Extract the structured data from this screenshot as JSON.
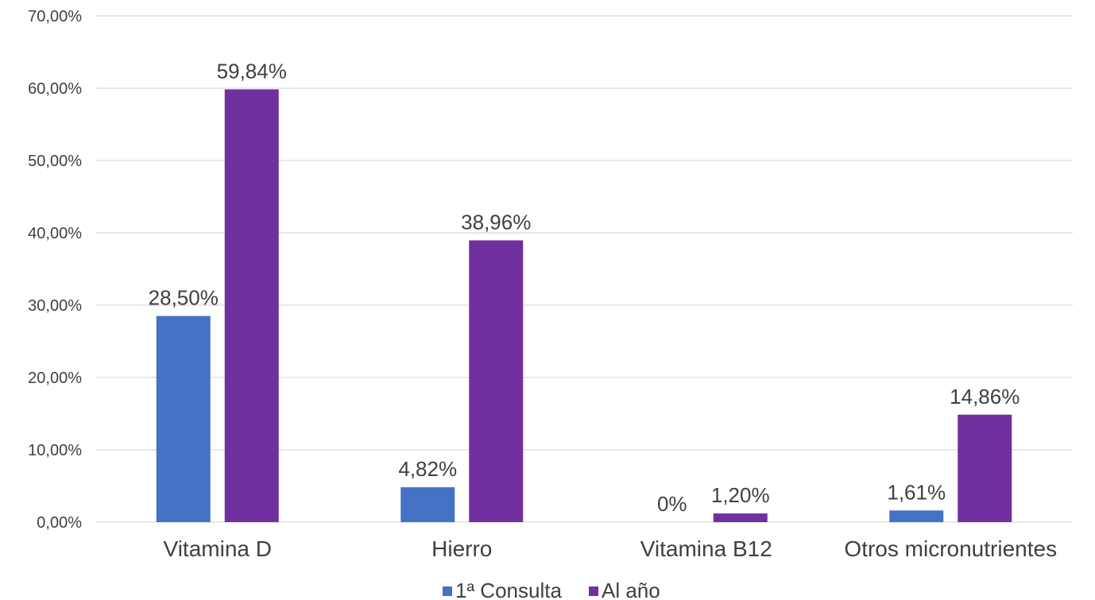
{
  "chart_data": {
    "type": "bar",
    "categories": [
      "Vitamina D",
      "Hierro",
      "Vitamina B12",
      "Otros micronutrientes"
    ],
    "series": [
      {
        "name": "1ª Consulta",
        "color": "#4472C4",
        "values": [
          28.5,
          4.82,
          0,
          1.61
        ],
        "labels": [
          "28,50%",
          "4,82%",
          "0%",
          "1,61%"
        ]
      },
      {
        "name": "Al año",
        "color": "#7030A0",
        "values": [
          59.84,
          38.96,
          1.2,
          14.86
        ],
        "labels": [
          "59,84%",
          "38,96%",
          "1,20%",
          "14,86%"
        ]
      }
    ],
    "ylim": [
      0,
      70
    ],
    "yticks": [
      0,
      10,
      20,
      30,
      40,
      50,
      60,
      70
    ],
    "ytick_labels": [
      "0,00%",
      "10,00%",
      "20,00%",
      "30,00%",
      "40,00%",
      "50,00%",
      "60,00%",
      "70,00%"
    ],
    "title": "",
    "xlabel": "",
    "ylabel": "",
    "grid": true,
    "legend_position": "bottom"
  }
}
